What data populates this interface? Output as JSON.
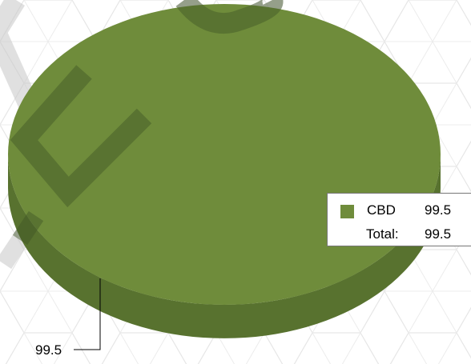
{
  "chart_data": {
    "type": "pie",
    "style": "3d",
    "slices": [
      {
        "label": "CBD",
        "value": 99.5,
        "color": "#6f8c3b"
      }
    ],
    "data_labels": [
      "99.5"
    ],
    "legend": {
      "placement": "right",
      "entries": [
        {
          "name": "CBD",
          "value": "99.5"
        }
      ],
      "total_label": "Total:",
      "total_value": "99.5"
    }
  }
}
